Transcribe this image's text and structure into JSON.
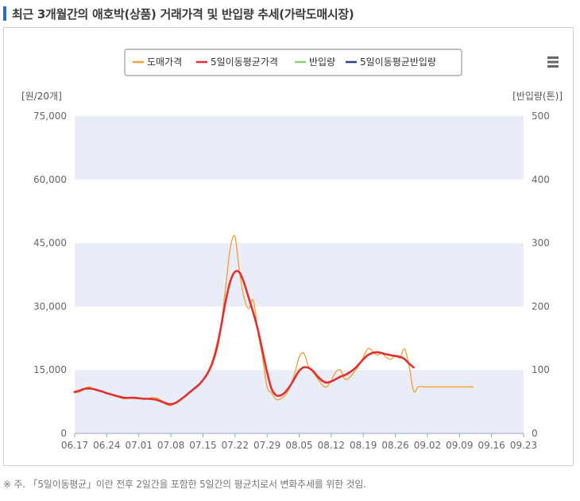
{
  "page": {
    "title": "최근 3개월간의 애호박(상품) 거래가격 및 반입량 추세(가락도매시장)",
    "footnote": "※ 주. 「5일이동평균」이란 전후 2일간을 포함한 5일간의 평균치로서 변화추세를 위한 것임.",
    "accent_color": "#2a6fb8"
  },
  "chart_data": {
    "type": "line",
    "title": "",
    "legend_position": "top-center",
    "legend": [
      {
        "name": "도매가격",
        "color": "#f2a43a"
      },
      {
        "name": "5일이동평균가격",
        "color": "#e03030"
      },
      {
        "name": "반입량",
        "color": "#8fcf7a"
      },
      {
        "name": "5일이동평균반입량",
        "color": "#2e3f8f"
      }
    ],
    "menu_icon": "hamburger-menu-icon",
    "y_left": {
      "label": "[원/20개]",
      "min": 0,
      "max": 75000,
      "ticks": [
        "0",
        "15,000",
        "30,000",
        "45,000",
        "60,000",
        "75,000"
      ],
      "tick_values": [
        0,
        15000,
        30000,
        45000,
        60000,
        75000
      ]
    },
    "y_right": {
      "label": "[반입량(톤)]",
      "min": 0,
      "max": 500,
      "ticks": [
        "0",
        "100",
        "200",
        "300",
        "400",
        "500"
      ],
      "tick_values": [
        0,
        100,
        200,
        300,
        400,
        500
      ]
    },
    "x_axis": {
      "ticks": [
        "06.17",
        "06.24",
        "07.01",
        "07.08",
        "07.15",
        "07.22",
        "07.29",
        "08.05",
        "08.12",
        "08.19",
        "08.26",
        "09.02",
        "09.09",
        "09.16",
        "09.23"
      ],
      "day_span": 98,
      "tick_interval_days": 7
    },
    "band_color": "#e8edf8",
    "series": [
      {
        "name": "도매가격",
        "color": "#f2a43a",
        "width": 1.4,
        "x": [
          0,
          1,
          2,
          3,
          4,
          5,
          6,
          7,
          8,
          9,
          10,
          11,
          12,
          13,
          14,
          15,
          16,
          17,
          18,
          19,
          20,
          21,
          22,
          23,
          24,
          25,
          26,
          27,
          28,
          29,
          30,
          31,
          32,
          33,
          34,
          35,
          36,
          37,
          38,
          39,
          40,
          41,
          42,
          43,
          44,
          45,
          46,
          47,
          48,
          49,
          50,
          51,
          52,
          53,
          54,
          55,
          56,
          57,
          58,
          59,
          60,
          61,
          62,
          63,
          64,
          65,
          66,
          67,
          68,
          69,
          70,
          71,
          72,
          73,
          74,
          75,
          76,
          77,
          78,
          79,
          80,
          81,
          82,
          83,
          84,
          85,
          86,
          87
        ],
        "values": [
          9600,
          9800,
          10400,
          11000,
          10600,
          10300,
          9900,
          9600,
          9300,
          8900,
          8400,
          8200,
          8500,
          8600,
          8400,
          8100,
          8200,
          8500,
          8300,
          7700,
          6800,
          6600,
          7200,
          8000,
          8800,
          9600,
          10500,
          11400,
          12500,
          14000,
          17000,
          21000,
          26000,
          35000,
          44000,
          46500,
          38000,
          32000,
          29500,
          31500,
          24000,
          18000,
          11000,
          9500,
          8000,
          8200,
          9000,
          11000,
          14000,
          18000,
          19000,
          16000,
          14500,
          13000,
          11500,
          11000,
          12500,
          14500,
          15000,
          12800,
          13200,
          14500,
          16000,
          18000,
          20000,
          19500,
          18500,
          19000,
          18000,
          17500,
          18500,
          17800,
          20000,
          16000,
          10000,
          11000,
          11000,
          11000,
          11000,
          11000,
          11000,
          11000,
          11000,
          11000,
          11000,
          11000,
          11000,
          11000
        ]
      },
      {
        "name": "5일이동평균가격",
        "color": "#e03030",
        "width": 2.6,
        "x": [
          0,
          1,
          2,
          3,
          4,
          5,
          6,
          7,
          8,
          9,
          10,
          11,
          12,
          13,
          14,
          15,
          16,
          17,
          18,
          19,
          20,
          21,
          22,
          23,
          24,
          25,
          26,
          27,
          28,
          29,
          30,
          31,
          32,
          33,
          34,
          35,
          36,
          37,
          38,
          39,
          40,
          41,
          42,
          43,
          44,
          45,
          46,
          47,
          48,
          49,
          50,
          51,
          52,
          53,
          54,
          55,
          56,
          57,
          58,
          59,
          60,
          61,
          62,
          63,
          64,
          65,
          66,
          67,
          68,
          69,
          70,
          71,
          72,
          73,
          74
        ],
        "values": [
          9800,
          10100,
          10500,
          10600,
          10500,
          10200,
          9900,
          9500,
          9200,
          8900,
          8600,
          8400,
          8400,
          8400,
          8300,
          8200,
          8200,
          8100,
          7900,
          7500,
          7100,
          6900,
          7200,
          7900,
          8700,
          9600,
          10500,
          11400,
          12600,
          14200,
          16500,
          20000,
          25500,
          31500,
          36000,
          38200,
          38000,
          35500,
          32000,
          28500,
          24500,
          19500,
          14500,
          10500,
          9000,
          9000,
          9800,
          11200,
          13000,
          14800,
          15600,
          15500,
          14800,
          13500,
          12500,
          12000,
          12300,
          12800,
          13400,
          13800,
          14400,
          15200,
          16300,
          17500,
          18500,
          19000,
          19200,
          19000,
          18700,
          18500,
          18300,
          18100,
          17600,
          16500,
          15600
        ]
      },
      {
        "name": "반입량",
        "color": "#8fcf7a",
        "width": 1.4,
        "x": [],
        "values": []
      },
      {
        "name": "5일이동평균반입량",
        "color": "#2e3f8f",
        "width": 1.4,
        "x": [],
        "values": []
      }
    ]
  }
}
